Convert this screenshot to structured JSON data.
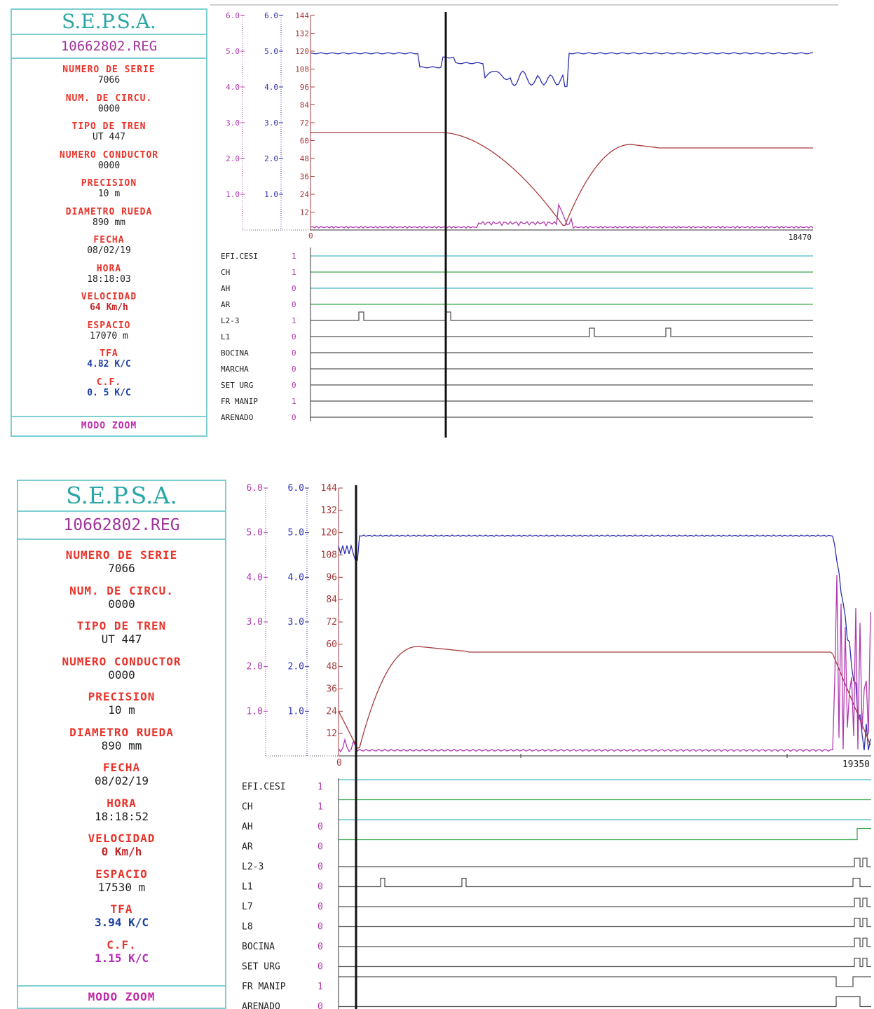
{
  "screens": [
    {
      "brand": "S.E.P.S.A.",
      "file": "10662802.REG",
      "fields": [
        {
          "label": "NUMERO DE SERIE",
          "value": "7066",
          "style": ""
        },
        {
          "label": "NUM. DE CIRCU.",
          "value": "0000",
          "style": ""
        },
        {
          "label": "TIPO DE TREN",
          "value": "UT 447",
          "style": ""
        },
        {
          "label": "NUMERO CONDUCTOR",
          "value": "0000",
          "style": ""
        },
        {
          "label": "PRECISION",
          "value": "10 m",
          "style": ""
        },
        {
          "label": "DIAMETRO RUEDA",
          "value": "890 mm",
          "style": ""
        },
        {
          "label": "FECHA",
          "value": "08/02/19",
          "style": ""
        },
        {
          "label": "HORA",
          "value": "18:18:03",
          "style": ""
        },
        {
          "label": "VELOCIDAD",
          "value": "64 Km/h",
          "style": "red"
        },
        {
          "label": "ESPACIO",
          "value": "17070 m",
          "style": ""
        },
        {
          "label": "TFA",
          "value": "4.82 K/C",
          "style": "blue"
        },
        {
          "label": "C.F.",
          "value": "0. 5 K/C",
          "style": "blue"
        }
      ],
      "mode": "MODO ZOOM",
      "axis_left": [
        "6.0",
        "5.0",
        "4.0",
        "3.0",
        "2.0",
        "1.0"
      ],
      "axis_mid": [
        "6.0",
        "5.0",
        "4.0",
        "3.0",
        "2.0",
        "1.0"
      ],
      "axis_speed": [
        "144",
        "132",
        "120",
        "108",
        "96",
        "84",
        "72",
        "60",
        "48",
        "36",
        "24",
        "12"
      ],
      "x_start": "0",
      "x_end": "18470",
      "signals": [
        {
          "name": "EFI.CESI",
          "state": "1"
        },
        {
          "name": "CH",
          "state": "1"
        },
        {
          "name": "AH",
          "state": "0"
        },
        {
          "name": "AR",
          "state": "0"
        },
        {
          "name": "L2-3",
          "state": "1"
        },
        {
          "name": "L1",
          "state": "0"
        },
        {
          "name": "BOCINA",
          "state": "0"
        },
        {
          "name": "MARCHA",
          "state": "0"
        },
        {
          "name": "SET URG",
          "state": "0"
        },
        {
          "name": "FR MANIP",
          "state": "1"
        },
        {
          "name": "ARENADO",
          "state": "0"
        }
      ],
      "colors": {
        "blue": "#2c2fb0",
        "red": "#a63a3a",
        "magenta": "#b03ab0",
        "cyan": "#4ab8c8",
        "green": "#3aa84a",
        "gray": "#555555"
      }
    },
    {
      "brand": "S.E.P.S.A.",
      "file": "10662802.REG",
      "fields": [
        {
          "label": "NUMERO DE SERIE",
          "value": "7066",
          "style": ""
        },
        {
          "label": "NUM. DE CIRCU.",
          "value": "0000",
          "style": ""
        },
        {
          "label": "TIPO DE TREN",
          "value": "UT 447",
          "style": ""
        },
        {
          "label": "NUMERO CONDUCTOR",
          "value": "0000",
          "style": ""
        },
        {
          "label": "PRECISION",
          "value": "10 m",
          "style": ""
        },
        {
          "label": "DIAMETRO RUEDA",
          "value": "890 mm",
          "style": ""
        },
        {
          "label": "FECHA",
          "value": "08/02/19",
          "style": ""
        },
        {
          "label": "HORA",
          "value": "18:18:52",
          "style": ""
        },
        {
          "label": "VELOCIDAD",
          "value": "0 Km/h",
          "style": "red"
        },
        {
          "label": "ESPACIO",
          "value": "17530 m",
          "style": ""
        },
        {
          "label": "TFA",
          "value": "3.94 K/C",
          "style": "blue"
        },
        {
          "label": "C.F.",
          "value": "1.15 K/C",
          "style": "mag"
        }
      ],
      "mode": "MODO ZOOM",
      "axis_left": [
        "6.0",
        "5.0",
        "4.0",
        "3.0",
        "2.0",
        "1.0"
      ],
      "axis_mid": [
        "6.0",
        "5.0",
        "4.0",
        "3.0",
        "2.0",
        "1.0"
      ],
      "axis_speed": [
        "144",
        "132",
        "120",
        "108",
        "96",
        "84",
        "72",
        "60",
        "48",
        "36",
        "24",
        "12"
      ],
      "x_start": "0",
      "x_end": "19350",
      "signals": [
        {
          "name": "EFI.CESI",
          "state": "1"
        },
        {
          "name": "CH",
          "state": "1"
        },
        {
          "name": "AH",
          "state": "0"
        },
        {
          "name": "AR",
          "state": "0"
        },
        {
          "name": "L2-3",
          "state": "0"
        },
        {
          "name": "L1",
          "state": "0"
        },
        {
          "name": "L7",
          "state": "0"
        },
        {
          "name": "L8",
          "state": "0"
        },
        {
          "name": "BOCINA",
          "state": "0"
        },
        {
          "name": "SET URG",
          "state": "0"
        },
        {
          "name": "FR MANIP",
          "state": "1"
        },
        {
          "name": "ARENADO",
          "state": "0"
        }
      ],
      "colors": {
        "blue": "#2c2fb0",
        "red": "#a63a3a",
        "magenta": "#b03ab0",
        "cyan": "#4ab8c8",
        "green": "#3aa84a",
        "gray": "#555555"
      }
    }
  ]
}
